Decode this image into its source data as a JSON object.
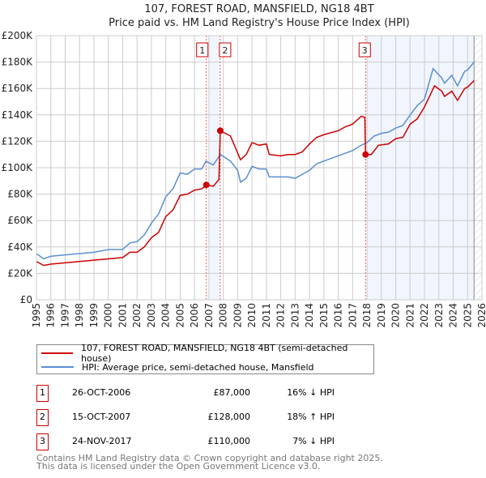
{
  "chart_data": {
    "type": "line",
    "title": "107, FOREST ROAD, MANSFIELD, NG18 4BT",
    "subtitle": "Price paid vs. HM Land Registry's House Price Index (HPI)",
    "xlim": [
      1995,
      2026
    ],
    "ylim": [
      0,
      200000
    ],
    "yticks": [
      0,
      20000,
      40000,
      60000,
      80000,
      100000,
      120000,
      140000,
      160000,
      180000,
      200000
    ],
    "ytick_labels": [
      "£0",
      "£20K",
      "£40K",
      "£60K",
      "£80K",
      "£100K",
      "£120K",
      "£140K",
      "£160K",
      "£180K",
      "£200K"
    ],
    "xticks": [
      1995,
      1996,
      1997,
      1998,
      1999,
      2000,
      2001,
      2002,
      2003,
      2004,
      2005,
      2006,
      2007,
      2008,
      2009,
      2010,
      2011,
      2012,
      2013,
      2014,
      2015,
      2016,
      2017,
      2018,
      2019,
      2020,
      2021,
      2022,
      2023,
      2024,
      2025,
      2026
    ],
    "grid": true,
    "series": [
      {
        "name": "107, FOREST ROAD, MANSFIELD, NG18 4BT (semi-detached house)",
        "color": "#cc0000",
        "points": [
          [
            1995,
            29000
          ],
          [
            1995.5,
            26000
          ],
          [
            1996,
            27000
          ],
          [
            1997,
            28000
          ],
          [
            1998,
            29000
          ],
          [
            1999,
            30000
          ],
          [
            2000,
            31000
          ],
          [
            2001,
            32000
          ],
          [
            2001.5,
            36000
          ],
          [
            2002,
            36000
          ],
          [
            2002.5,
            40000
          ],
          [
            2003,
            47000
          ],
          [
            2003.5,
            51000
          ],
          [
            2004,
            63000
          ],
          [
            2004.5,
            68000
          ],
          [
            2005,
            79000
          ],
          [
            2005.5,
            80000
          ],
          [
            2006,
            83000
          ],
          [
            2006.5,
            84000
          ],
          [
            2006.82,
            87000
          ],
          [
            2007.3,
            86000
          ],
          [
            2007.7,
            91000
          ],
          [
            2007.79,
            128000
          ],
          [
            2008.5,
            124000
          ],
          [
            2009.2,
            106000
          ],
          [
            2009.6,
            110000
          ],
          [
            2010,
            119000
          ],
          [
            2010.5,
            117000
          ],
          [
            2011,
            118000
          ],
          [
            2011.2,
            110000
          ],
          [
            2012,
            109000
          ],
          [
            2012.5,
            110000
          ],
          [
            2013,
            110000
          ],
          [
            2013.5,
            112000
          ],
          [
            2014,
            118000
          ],
          [
            2014.5,
            123000
          ],
          [
            2015,
            125000
          ],
          [
            2016,
            128000
          ],
          [
            2016.5,
            131000
          ],
          [
            2017,
            133000
          ],
          [
            2017.6,
            139000
          ],
          [
            2017.85,
            138000
          ],
          [
            2017.9,
            110000
          ],
          [
            2018.3,
            110000
          ],
          [
            2018.8,
            117000
          ],
          [
            2019.5,
            118000
          ],
          [
            2020,
            122000
          ],
          [
            2020.5,
            123000
          ],
          [
            2021,
            133000
          ],
          [
            2021.5,
            137000
          ],
          [
            2022,
            146000
          ],
          [
            2022.7,
            162000
          ],
          [
            2023.2,
            158000
          ],
          [
            2023.4,
            154000
          ],
          [
            2023.9,
            158000
          ],
          [
            2024.3,
            151000
          ],
          [
            2024.8,
            160000
          ],
          [
            2025,
            161000
          ],
          [
            2025.45,
            166000
          ]
        ]
      },
      {
        "name": "HPI: Average price, semi-detached house, Mansfield",
        "color": "#5b8fd4",
        "points": [
          [
            1995,
            35000
          ],
          [
            1995.5,
            31000
          ],
          [
            1996,
            33000
          ],
          [
            1997,
            34000
          ],
          [
            1998,
            35000
          ],
          [
            1999,
            36000
          ],
          [
            2000,
            38000
          ],
          [
            2001,
            38000
          ],
          [
            2001.5,
            43000
          ],
          [
            2002,
            44000
          ],
          [
            2002.5,
            49000
          ],
          [
            2003,
            58000
          ],
          [
            2003.5,
            65000
          ],
          [
            2004,
            78000
          ],
          [
            2004.5,
            84000
          ],
          [
            2005,
            96000
          ],
          [
            2005.5,
            95000
          ],
          [
            2006,
            99000
          ],
          [
            2006.5,
            99000
          ],
          [
            2006.8,
            105000
          ],
          [
            2007.3,
            102000
          ],
          [
            2007.8,
            110000
          ],
          [
            2008.5,
            105000
          ],
          [
            2009,
            98000
          ],
          [
            2009.2,
            89000
          ],
          [
            2009.6,
            92000
          ],
          [
            2010,
            101000
          ],
          [
            2010.5,
            99000
          ],
          [
            2011,
            99000
          ],
          [
            2011.2,
            93000
          ],
          [
            2012,
            93000
          ],
          [
            2012.5,
            93000
          ],
          [
            2013,
            92000
          ],
          [
            2013.5,
            95000
          ],
          [
            2014,
            98000
          ],
          [
            2014.5,
            103000
          ],
          [
            2015,
            105000
          ],
          [
            2016,
            109000
          ],
          [
            2016.5,
            111000
          ],
          [
            2017,
            113000
          ],
          [
            2017.6,
            117000
          ],
          [
            2018,
            119000
          ],
          [
            2018.5,
            124000
          ],
          [
            2019,
            126000
          ],
          [
            2019.5,
            127000
          ],
          [
            2020,
            130000
          ],
          [
            2020.5,
            132000
          ],
          [
            2021,
            140000
          ],
          [
            2021.5,
            147000
          ],
          [
            2022,
            152000
          ],
          [
            2022.6,
            175000
          ],
          [
            2023.2,
            168000
          ],
          [
            2023.4,
            164000
          ],
          [
            2023.9,
            170000
          ],
          [
            2024.3,
            162000
          ],
          [
            2024.8,
            173000
          ],
          [
            2025,
            174000
          ],
          [
            2025.45,
            180000
          ]
        ]
      }
    ],
    "sales": [
      {
        "label": "1",
        "x": 2006.82,
        "y": 87000
      },
      {
        "label": "2",
        "x": 2007.79,
        "y": 128000
      },
      {
        "label": "3",
        "x": 2017.9,
        "y": 110000
      }
    ],
    "shaded_ranges": [
      [
        2007.0,
        2007.79
      ],
      [
        2018.0,
        2025.45
      ]
    ],
    "hatched_range": [
      2025.45,
      2026
    ]
  },
  "legend": {
    "property": "107, FOREST ROAD, MANSFIELD, NG18 4BT (semi-detached house)",
    "hpi": "HPI: Average price, semi-detached house, Mansfield"
  },
  "transactions": [
    {
      "num": "1",
      "date": "26-OCT-2006",
      "price": "£87,000",
      "hpi": "16% ↓ HPI"
    },
    {
      "num": "2",
      "date": "15-OCT-2007",
      "price": "£128,000",
      "hpi": "18% ↑ HPI"
    },
    {
      "num": "3",
      "date": "24-NOV-2017",
      "price": "£110,000",
      "hpi": "7% ↓ HPI"
    }
  ],
  "footer": {
    "line1": "Contains HM Land Registry data © Crown copyright and database right 2025.",
    "line2": "This data is licensed under the Open Government Licence v3.0."
  }
}
